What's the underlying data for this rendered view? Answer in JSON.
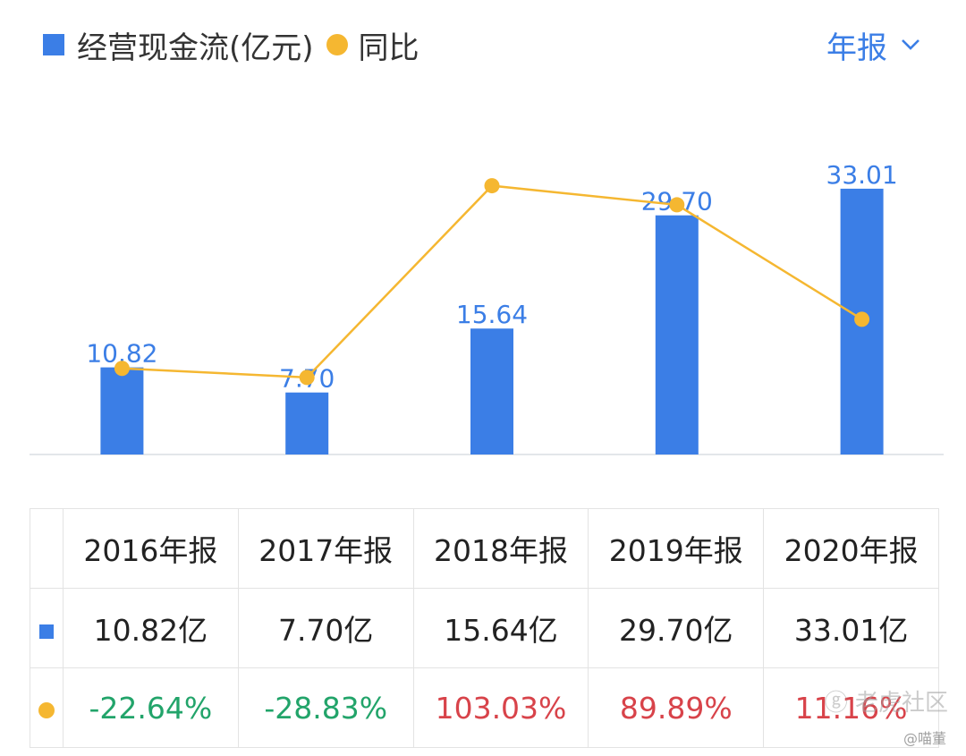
{
  "legend": {
    "bar_label": "经营现金流(亿元)",
    "line_label": "同比"
  },
  "period": {
    "label": "年报"
  },
  "colors": {
    "bar": "#3b7ee6",
    "line": "#f5b731",
    "positive": "#d8434a",
    "negative": "#22a46a",
    "bar_label": "#3b7ee6"
  },
  "chart_data": {
    "type": "bar",
    "title": "",
    "categories": [
      "2016年报",
      "2017年报",
      "2018年报",
      "2019年报",
      "2020年报"
    ],
    "series": [
      {
        "name": "经营现金流(亿元)",
        "type": "bar",
        "values": [
          10.82,
          7.7,
          15.64,
          29.7,
          33.01
        ],
        "value_labels": [
          "10.82",
          "7.70",
          "15.64",
          "29.70",
          "33.01"
        ]
      },
      {
        "name": "同比",
        "type": "line",
        "values": [
          -22.64,
          -28.83,
          103.03,
          89.89,
          11.16
        ]
      }
    ]
  },
  "table": {
    "headers": [
      "2016年报",
      "2017年报",
      "2018年报",
      "2019年报",
      "2020年报"
    ],
    "values": [
      "10.82亿",
      "7.70亿",
      "15.64亿",
      "29.70亿",
      "33.01亿"
    ],
    "yoy": [
      "-22.64%",
      "-28.83%",
      "103.03%",
      "89.89%",
      "11.16%"
    ]
  },
  "watermark": {
    "text": "ⓖ 老虎社区",
    "sub": "@喵董"
  }
}
